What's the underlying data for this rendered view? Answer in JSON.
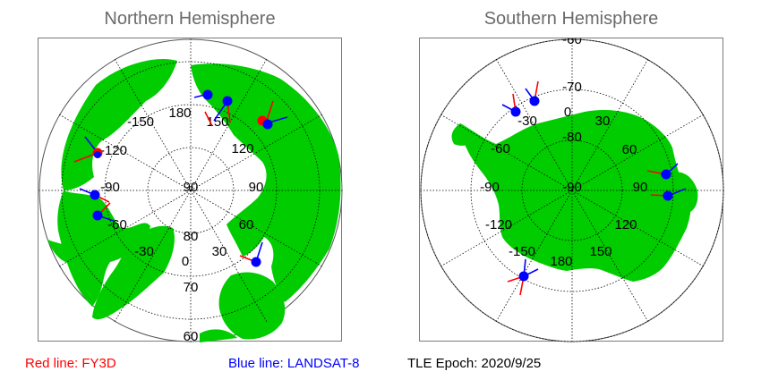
{
  "north": {
    "title": "Northern Hemisphere",
    "longitude_labels": [
      "180",
      "150",
      "120",
      "90",
      "60",
      "30",
      "0",
      "-30",
      "-60",
      "-90",
      "-120",
      "-150"
    ],
    "latitude_labels": [
      "90",
      "80",
      "70",
      "60"
    ]
  },
  "south": {
    "title": "Southern Hemisphere",
    "longitude_labels": [
      "-30",
      "0",
      "30",
      "60",
      "90",
      "120",
      "150",
      "180",
      "-150",
      "-120",
      "-90",
      "-60"
    ],
    "latitude_labels": [
      "-60",
      "-70",
      "-80",
      "-90"
    ]
  },
  "legend": {
    "red_label": "Red line: FY3D",
    "blue_label": "Blue line: LANDSAT-8",
    "epoch_label": "TLE Epoch: 2020/9/25"
  },
  "colors": {
    "land": "#00cc00",
    "fy3d": "#ff0000",
    "landsat8": "#0000ff",
    "graticule": "#000000",
    "title": "#6b6b6b"
  }
}
